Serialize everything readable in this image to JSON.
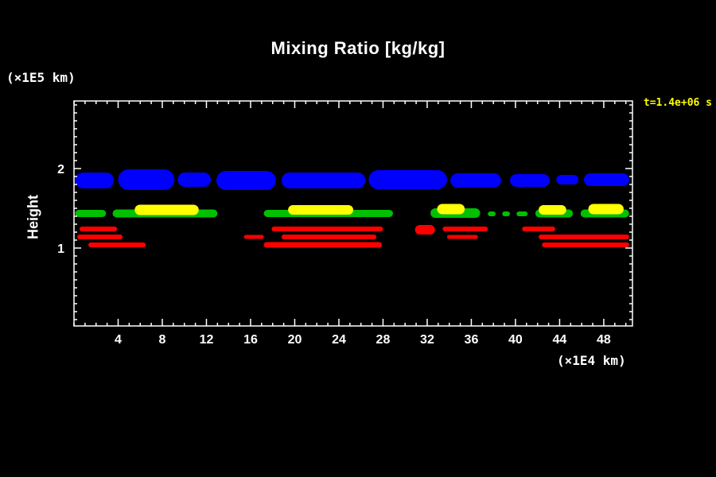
{
  "title": "Mixing Ratio [kg/kg]",
  "labels": {
    "y_unit": "(×1E5 km)",
    "x_unit": "(×1E4 km)",
    "y_axis": "Height",
    "time": "t=1.4e+06 s"
  },
  "colors": {
    "background": "#000000",
    "frame": "#ffffff",
    "text": "#ffffff",
    "time_text": "#ffff00",
    "cloud_blue": "#0000ff",
    "cloud_green": "#00c000",
    "cloud_yellow": "#ffff00",
    "cloud_red": "#ff0000"
  },
  "chart_data": {
    "type": "heatmap",
    "title": "Mixing Ratio [kg/kg]",
    "xlabel": "(×1E4 km)",
    "ylabel": "Height (×1E5 km)",
    "annotation": "t=1.4e+06 s",
    "xlim": [
      0,
      50.6
    ],
    "ylim": [
      0.02,
      2.85
    ],
    "x_ticks": [
      4,
      8,
      12,
      16,
      20,
      24,
      28,
      32,
      36,
      40,
      44,
      48
    ],
    "y_ticks": [
      1,
      2
    ],
    "x_minor_step": 1,
    "y_minor_step": 0.1,
    "grid": false,
    "legend": "none",
    "bands": [
      {
        "name": "upper-cloud-layer-blue",
        "color": "#0000ff",
        "blobs": [
          {
            "x1": 0.1,
            "x2": 3.6,
            "y": 1.85,
            "h": 0.2
          },
          {
            "x1": 4.0,
            "x2": 9.1,
            "y": 1.86,
            "h": 0.26
          },
          {
            "x1": 9.4,
            "x2": 12.4,
            "y": 1.86,
            "h": 0.18
          },
          {
            "x1": 12.9,
            "x2": 18.3,
            "y": 1.85,
            "h": 0.24
          },
          {
            "x1": 18.8,
            "x2": 26.4,
            "y": 1.85,
            "h": 0.2
          },
          {
            "x1": 26.7,
            "x2": 33.8,
            "y": 1.86,
            "h": 0.24
          },
          {
            "x1": 34.1,
            "x2": 38.7,
            "y": 1.85,
            "h": 0.18
          },
          {
            "x1": 39.5,
            "x2": 43.1,
            "y": 1.85,
            "h": 0.16
          },
          {
            "x1": 43.7,
            "x2": 45.7,
            "y": 1.86,
            "h": 0.12
          },
          {
            "x1": 46.2,
            "x2": 50.3,
            "y": 1.86,
            "h": 0.16
          }
        ]
      },
      {
        "name": "mid-cloud-layer-green",
        "color": "#00c000",
        "blobs": [
          {
            "x1": 0.1,
            "x2": 2.9,
            "y": 1.435,
            "h": 0.09
          },
          {
            "x1": 3.5,
            "x2": 13.0,
            "y": 1.435,
            "h": 0.1
          },
          {
            "x1": 17.2,
            "x2": 28.9,
            "y": 1.435,
            "h": 0.09
          },
          {
            "x1": 32.3,
            "x2": 36.8,
            "y": 1.44,
            "h": 0.12
          },
          {
            "x1": 37.5,
            "x2": 38.2,
            "y": 1.43,
            "h": 0.06
          },
          {
            "x1": 38.8,
            "x2": 39.5,
            "y": 1.43,
            "h": 0.06
          },
          {
            "x1": 40.1,
            "x2": 41.1,
            "y": 1.43,
            "h": 0.06
          },
          {
            "x1": 41.8,
            "x2": 45.2,
            "y": 1.435,
            "h": 0.1
          },
          {
            "x1": 45.9,
            "x2": 50.3,
            "y": 1.435,
            "h": 0.1
          }
        ]
      },
      {
        "name": "mid-cloud-layer-yellow",
        "color": "#ffff00",
        "blobs": [
          {
            "x1": 5.5,
            "x2": 11.3,
            "y": 1.48,
            "h": 0.13
          },
          {
            "x1": 19.4,
            "x2": 25.3,
            "y": 1.48,
            "h": 0.12
          },
          {
            "x1": 32.9,
            "x2": 35.4,
            "y": 1.49,
            "h": 0.13
          },
          {
            "x1": 42.1,
            "x2": 44.6,
            "y": 1.48,
            "h": 0.12
          },
          {
            "x1": 46.6,
            "x2": 49.8,
            "y": 1.49,
            "h": 0.13
          }
        ]
      },
      {
        "name": "lower-cloud-layer-red",
        "color": "#ff0000",
        "blobs": [
          {
            "x1": 0.5,
            "x2": 3.9,
            "y": 1.24,
            "h": 0.06
          },
          {
            "x1": 17.9,
            "x2": 28.0,
            "y": 1.24,
            "h": 0.06
          },
          {
            "x1": 30.9,
            "x2": 32.7,
            "y": 1.23,
            "h": 0.12
          },
          {
            "x1": 33.4,
            "x2": 37.5,
            "y": 1.24,
            "h": 0.06
          },
          {
            "x1": 40.6,
            "x2": 43.6,
            "y": 1.24,
            "h": 0.06
          },
          {
            "x1": 0.3,
            "x2": 4.4,
            "y": 1.14,
            "h": 0.06
          },
          {
            "x1": 15.4,
            "x2": 17.2,
            "y": 1.14,
            "h": 0.05
          },
          {
            "x1": 18.8,
            "x2": 27.4,
            "y": 1.14,
            "h": 0.06
          },
          {
            "x1": 33.8,
            "x2": 36.6,
            "y": 1.14,
            "h": 0.05
          },
          {
            "x1": 42.1,
            "x2": 50.3,
            "y": 1.14,
            "h": 0.06
          },
          {
            "x1": 1.3,
            "x2": 6.5,
            "y": 1.04,
            "h": 0.06
          },
          {
            "x1": 17.2,
            "x2": 27.9,
            "y": 1.04,
            "h": 0.07
          },
          {
            "x1": 42.4,
            "x2": 50.3,
            "y": 1.04,
            "h": 0.06
          }
        ]
      }
    ]
  }
}
